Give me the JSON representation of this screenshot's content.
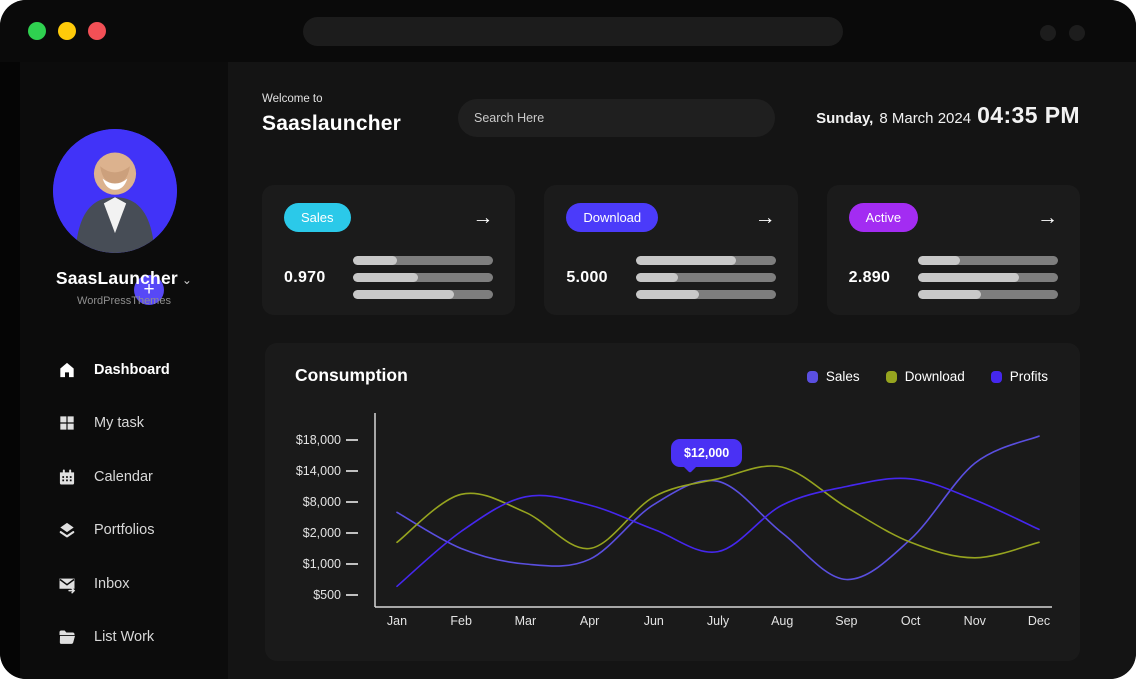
{
  "window": {
    "traffic_lights": [
      {
        "name": "green",
        "color": "#2fd150"
      },
      {
        "name": "yellow",
        "color": "#ffcb0a"
      },
      {
        "name": "red",
        "color": "#f25056"
      }
    ]
  },
  "sidebar": {
    "profile": {
      "name": "SaasLauncher",
      "chevron": "⌄",
      "subtitle": "WordPressThemes",
      "plus": "+"
    },
    "items": [
      {
        "label": "Dashboard",
        "icon": "home-icon",
        "active": true
      },
      {
        "label": "My task",
        "icon": "grid-icon",
        "active": false
      },
      {
        "label": "Calendar",
        "icon": "calendar-icon",
        "active": false
      },
      {
        "label": "Portfolios",
        "icon": "layers-icon",
        "active": false
      },
      {
        "label": "Inbox",
        "icon": "inbox-icon",
        "active": false
      },
      {
        "label": "List Work",
        "icon": "folder-icon",
        "active": false
      }
    ]
  },
  "header": {
    "welcome": "Welcome to",
    "app_name": "Saaslauncher",
    "search_placeholder": "Search Here",
    "date_prefix": "Sunday,",
    "date_rest": "8 March 2024",
    "time": "04:35 PM"
  },
  "stats": [
    {
      "label": "Sales",
      "value": "0.970",
      "badge_color": "#2bc9e9",
      "arrow": "→",
      "bars": [
        31,
        46,
        72
      ]
    },
    {
      "label": "Download",
      "value": "5.000",
      "badge_color": "#4b3bfa",
      "arrow": "→",
      "bars": [
        72,
        30,
        45
      ]
    },
    {
      "label": "Active",
      "value": "2.890",
      "badge_color": "#a32cf2",
      "arrow": "→",
      "bars": [
        30,
        72,
        45
      ]
    }
  ],
  "chart_data": {
    "type": "line",
    "title": "Consumption",
    "categories": [
      "Jan",
      "Feb",
      "Mar",
      "Apr",
      "Jun",
      "July",
      "Aug",
      "Sep",
      "Oct",
      "Nov",
      "Dec"
    ],
    "y_tick_labels": [
      "$18,000",
      "$14,000",
      "$8,000",
      "$2,000",
      "$1,000",
      "$500"
    ],
    "y_tick_values": [
      18000,
      14000,
      8000,
      2000,
      1000,
      500
    ],
    "y_axis_nonuniform": true,
    "grid": false,
    "legend_position": "top-right",
    "series": [
      {
        "name": "Sales",
        "color": "#5a4fe0",
        "values": [
          6000,
          1500,
          1000,
          1150,
          7500,
          12000,
          2000,
          750,
          1800,
          15000,
          18500
        ]
      },
      {
        "name": "Download",
        "color": "#96a41f",
        "values": [
          1700,
          9500,
          6000,
          1500,
          9000,
          12500,
          14500,
          7000,
          1700,
          1200,
          1700
        ]
      },
      {
        "name": "Profits",
        "color": "#4527ee",
        "values": [
          640,
          2300,
          9000,
          7400,
          2700,
          1400,
          7400,
          11000,
          12500,
          8400,
          2700
        ]
      }
    ],
    "tooltip": {
      "label": "$12,000",
      "series": "Sales",
      "category": "July"
    }
  }
}
